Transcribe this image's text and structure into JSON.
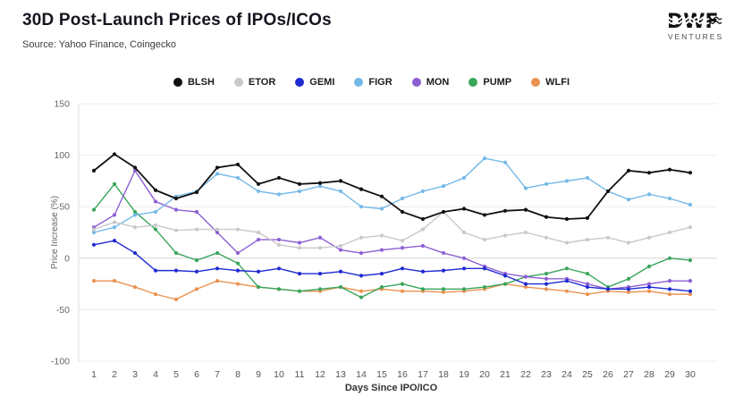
{
  "header": {
    "title": "30D Post-Launch Prices of IPOs/ICOs",
    "source": "Source: Yahoo Finance, Coingecko"
  },
  "logo": {
    "name": "DWF",
    "subtitle": "VENTURES"
  },
  "chart_data": {
    "type": "line",
    "title": "30D Post-Launch Prices of IPOs/ICOs",
    "xlabel": "Days Since IPO/ICO",
    "ylabel": "Price Increase (%)",
    "x": [
      1,
      2,
      3,
      4,
      5,
      6,
      7,
      8,
      9,
      10,
      11,
      12,
      13,
      14,
      15,
      16,
      17,
      18,
      19,
      20,
      21,
      22,
      23,
      24,
      25,
      26,
      27,
      28,
      29,
      30
    ],
    "ylim": [
      -100,
      150
    ],
    "yticks": [
      150,
      100,
      50,
      0,
      -50,
      -100
    ],
    "grid": true,
    "legend_position": "top",
    "marker": "circle",
    "series": [
      {
        "name": "BLSH",
        "color": "#111111",
        "values": [
          85,
          101,
          88,
          66,
          58,
          64,
          88,
          91,
          72,
          78,
          72,
          73,
          75,
          67,
          60,
          45,
          38,
          45,
          48,
          42,
          46,
          47,
          40,
          38,
          39,
          65,
          85,
          83,
          86,
          83
        ]
      },
      {
        "name": "ETOR",
        "color": "#c9c9c9",
        "values": [
          28,
          35,
          30,
          32,
          27,
          28,
          28,
          28,
          25,
          13,
          10,
          10,
          12,
          20,
          22,
          17,
          28,
          45,
          25,
          18,
          22,
          25,
          20,
          15,
          18,
          20,
          15,
          20,
          25,
          30
        ]
      },
      {
        "name": "GEMI",
        "color": "#1f2ad1",
        "values": [
          13,
          17,
          5,
          -12,
          -12,
          -13,
          -10,
          -12,
          -13,
          -10,
          -15,
          -15,
          -13,
          -17,
          -15,
          -10,
          -13,
          -12,
          -10,
          -10,
          -17,
          -25,
          -25,
          -22,
          -28,
          -30,
          -30,
          -28,
          -30,
          -32
        ]
      },
      {
        "name": "FIGR",
        "color": "#74b9e8",
        "values": [
          25,
          30,
          42,
          45,
          60,
          65,
          82,
          78,
          65,
          62,
          65,
          70,
          65,
          50,
          48,
          58,
          65,
          70,
          78,
          97,
          93,
          68,
          72,
          75,
          78,
          65,
          57,
          62,
          58,
          52
        ]
      },
      {
        "name": "MON",
        "color": "#8d5fd3",
        "values": [
          30,
          42,
          85,
          55,
          47,
          45,
          25,
          5,
          18,
          18,
          15,
          20,
          8,
          5,
          8,
          10,
          12,
          5,
          0,
          -8,
          -15,
          -18,
          -20,
          -20,
          -25,
          -30,
          -28,
          -25,
          -22,
          -22
        ]
      },
      {
        "name": "PUMP",
        "color": "#3aa55c",
        "values": [
          47,
          72,
          45,
          28,
          5,
          -2,
          5,
          -5,
          -28,
          -30,
          -32,
          -30,
          -28,
          -38,
          -28,
          -25,
          -30,
          -30,
          -30,
          -28,
          -25,
          -18,
          -15,
          -10,
          -15,
          -28,
          -20,
          -8,
          0,
          -2
        ]
      },
      {
        "name": "WLFI",
        "color": "#e99250",
        "values": [
          -22,
          -22,
          -28,
          -35,
          -40,
          -30,
          -22,
          -25,
          -28,
          -30,
          -32,
          -32,
          -28,
          -32,
          -30,
          -32,
          -32,
          -33,
          -32,
          -30,
          -25,
          -28,
          -30,
          -32,
          -35,
          -32,
          -33,
          -32,
          -35,
          -35
        ]
      }
    ]
  }
}
